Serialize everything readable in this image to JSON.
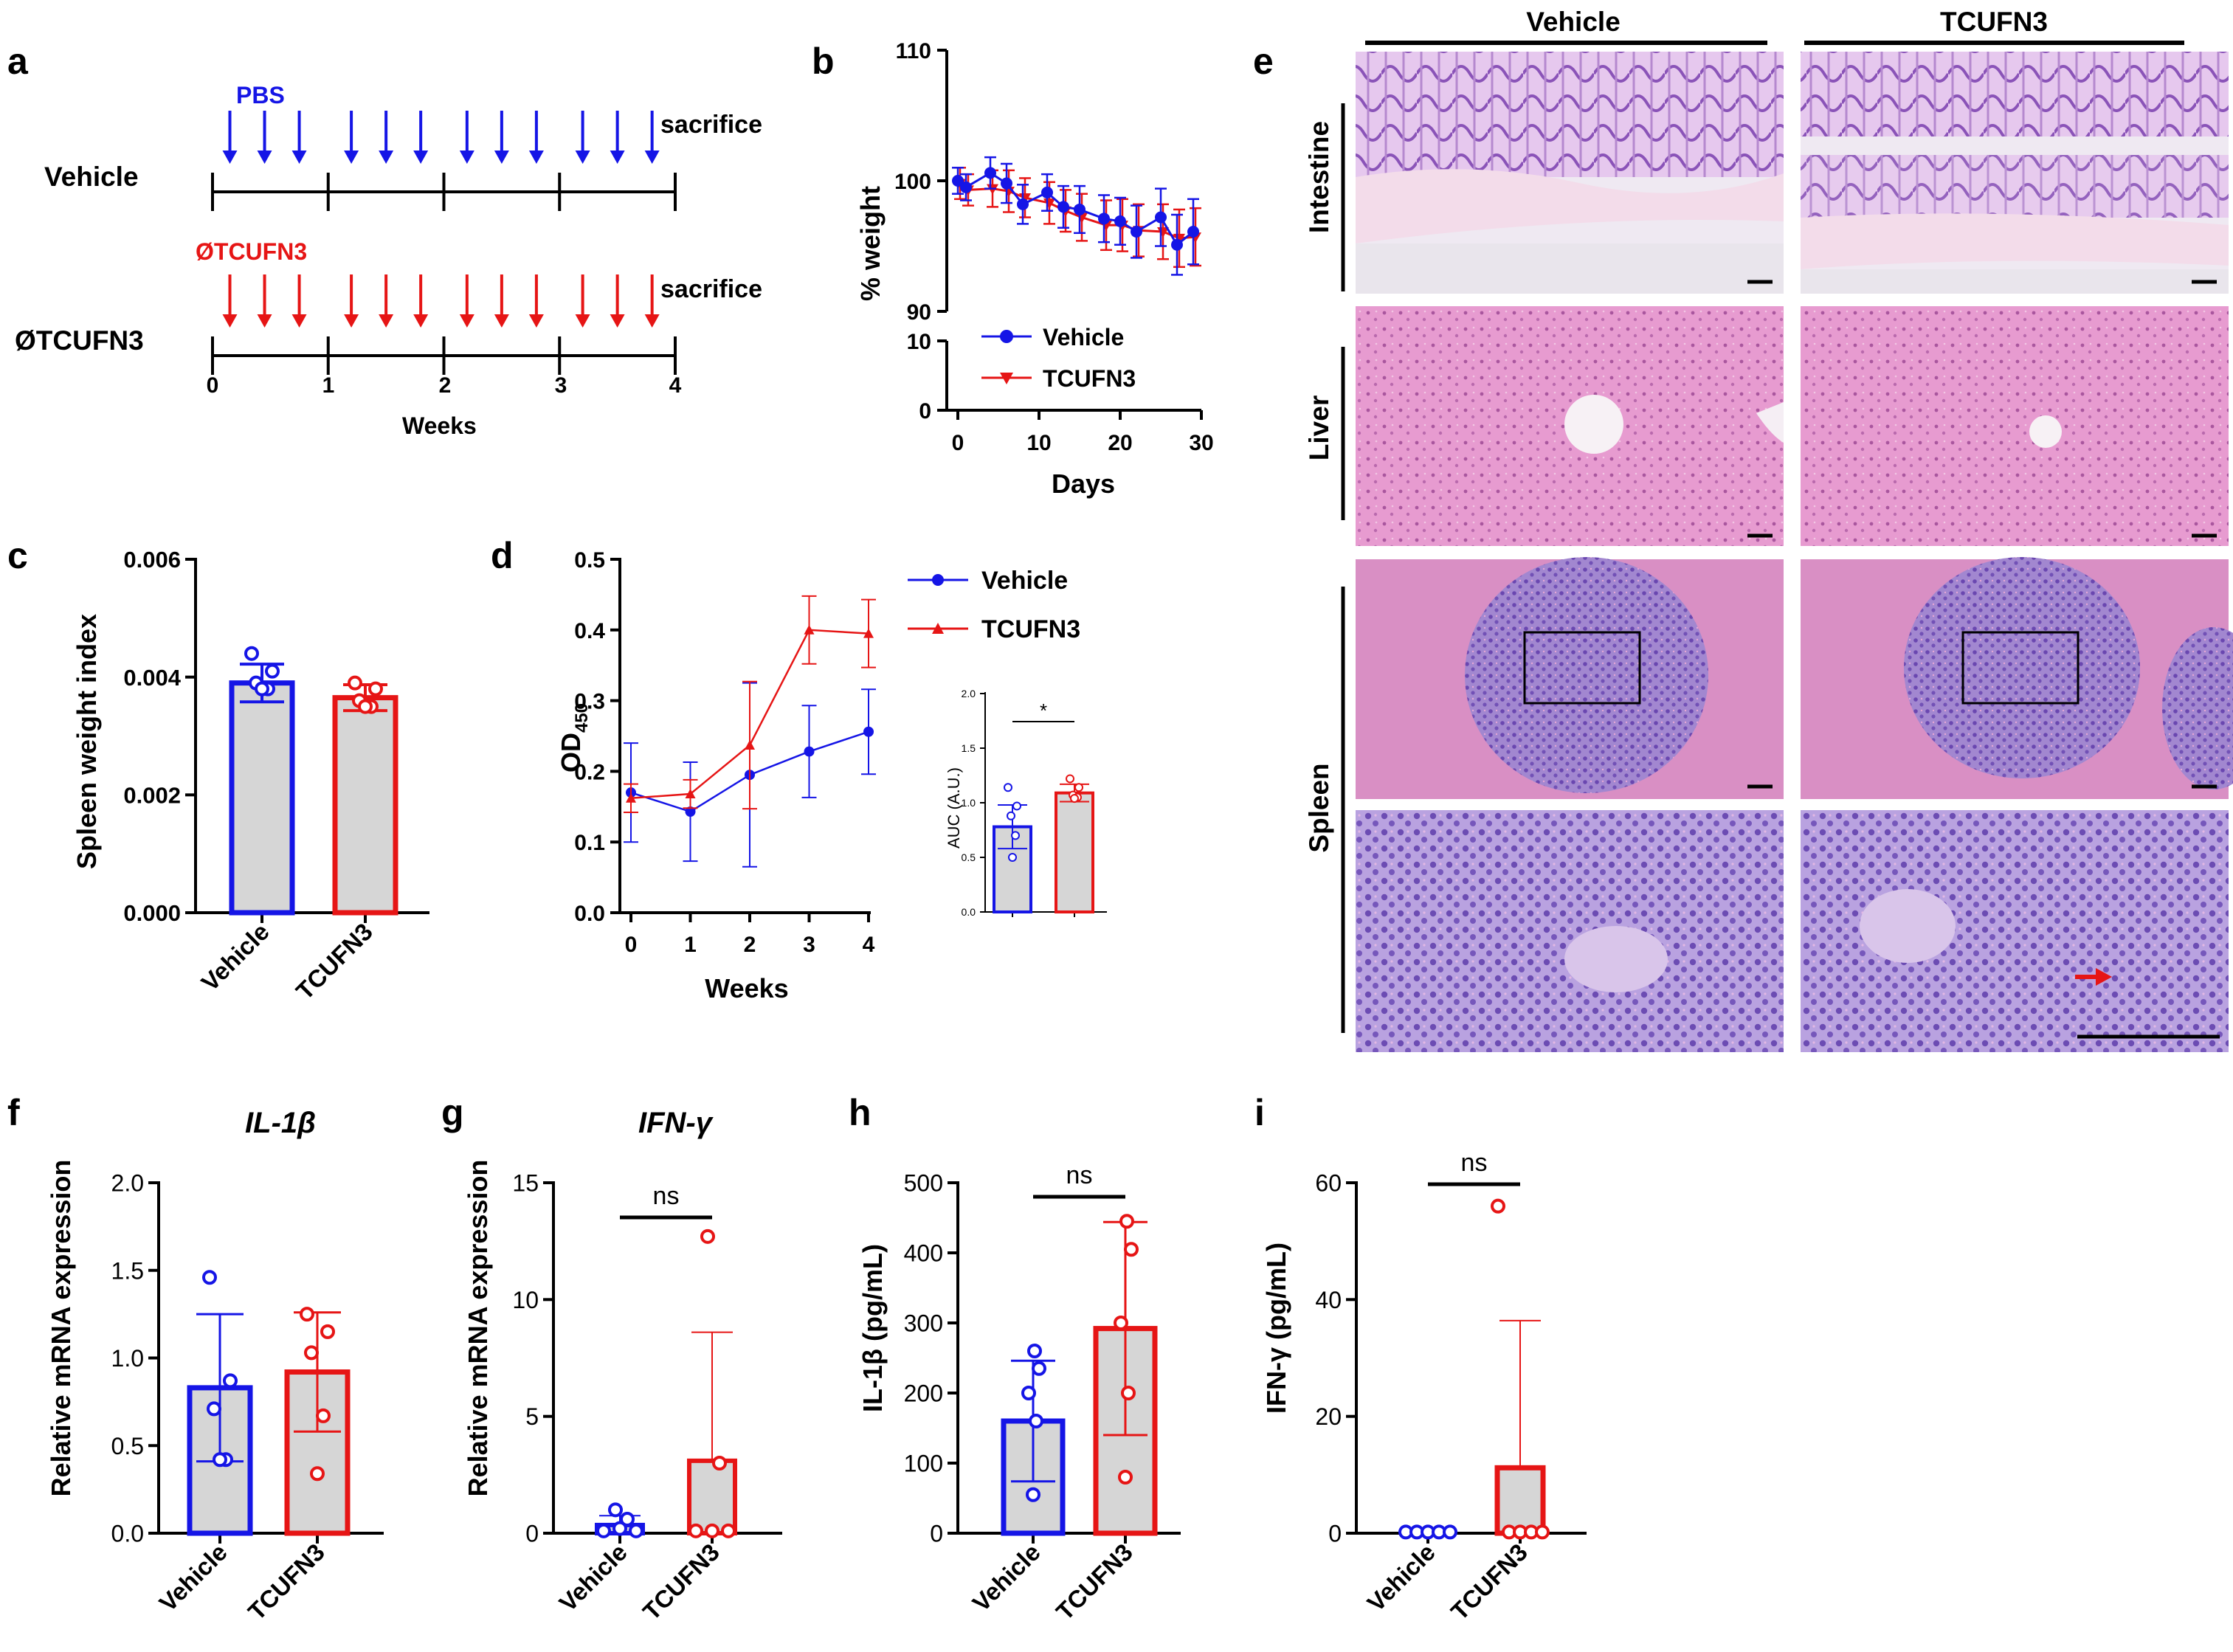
{
  "panels": {
    "a": {
      "label": "a",
      "groups": [
        {
          "name": "Vehicle",
          "treatment": "PBS",
          "color": "#1515e6"
        },
        {
          "name": "ØTCUFN3",
          "treatment": "ØTCUFN3",
          "color": "#e61515"
        }
      ],
      "end_label": "sacrifice",
      "ticks": [
        "0",
        "1",
        "2",
        "3",
        "4"
      ],
      "xlabel": "Weeks",
      "injection_weeks": [
        0.15,
        0.45,
        0.75,
        1.2,
        1.5,
        1.8,
        2.2,
        2.5,
        2.8,
        3.2,
        3.5,
        3.8
      ]
    },
    "b": {
      "label": "b"
    },
    "c": {
      "label": "c"
    },
    "d": {
      "label": "d"
    },
    "e": {
      "label": "e",
      "columns": [
        "Vehicle",
        "TCUFN3"
      ],
      "rows": [
        "Intestine",
        "Liver",
        "Spleen"
      ]
    },
    "f": {
      "label": "f"
    },
    "g": {
      "label": "g"
    },
    "h": {
      "label": "h"
    },
    "i": {
      "label": "i"
    }
  },
  "colors": {
    "vehicle": "#1515e6",
    "tcufn3": "#e61515",
    "bar_fill": "#d6d6d6"
  },
  "chart_data": [
    {
      "id": "b",
      "type": "line",
      "ylabel": "% weight",
      "xlabel": "Days",
      "x_ticks": [
        "0",
        "10",
        "20",
        "30"
      ],
      "y_ticks_upper": [
        "90",
        "100",
        "110"
      ],
      "y_ticks_lower": [
        "0",
        "10"
      ],
      "ylim_upper": [
        90,
        110
      ],
      "ylim_lower": [
        0,
        10
      ],
      "xlim": [
        0,
        30
      ],
      "series": [
        {
          "name": "Vehicle",
          "marker": "circle",
          "x": [
            0,
            1,
            4,
            6,
            8,
            11,
            13,
            15,
            18,
            20,
            22,
            25,
            27,
            29
          ],
          "y": [
            100,
            99.5,
            100.6,
            99.8,
            98.2,
            99.1,
            98,
            97.8,
            97.1,
            96.9,
            96.1,
            97.2,
            95.1,
            96.1
          ],
          "err": [
            1,
            1,
            1.2,
            1.5,
            1.5,
            1.4,
            1.6,
            1.8,
            1.8,
            1.8,
            2,
            2.2,
            2.3,
            2.5
          ]
        },
        {
          "name": "TCUFN3",
          "marker": "triangle-down",
          "x": [
            0,
            1,
            4,
            6,
            8,
            11,
            13,
            15,
            18,
            20,
            22,
            25,
            27,
            29
          ],
          "y": [
            99.8,
            99.3,
            99.4,
            99.2,
            98.7,
            98.3,
            97.7,
            97.2,
            96.6,
            96.6,
            96.2,
            96.1,
            95.6,
            95.7
          ],
          "err": [
            1.2,
            1.2,
            1.4,
            1.6,
            1.5,
            1.6,
            1.6,
            1.8,
            1.9,
            2,
            2,
            2.1,
            2.2,
            2.2
          ]
        }
      ]
    },
    {
      "id": "c",
      "type": "bar",
      "ylabel": "Spleen weight index",
      "categories": [
        "Vehicle",
        "TCUFN3"
      ],
      "y_ticks": [
        "0.000",
        "0.002",
        "0.004",
        "0.006"
      ],
      "ylim": [
        0,
        0.006
      ],
      "values": [
        0.0039,
        0.00365
      ],
      "errors": [
        0.00032,
        0.00022
      ],
      "points": [
        [
          0.0044,
          0.0041,
          0.0039,
          0.0038,
          0.0038
        ],
        [
          0.0039,
          0.0038,
          0.0036,
          0.0035,
          0.0035
        ]
      ]
    },
    {
      "id": "d",
      "type": "line",
      "ylabel": "OD",
      "ylabel_sub": "450",
      "xlabel": "Weeks",
      "x_ticks": [
        "0",
        "1",
        "2",
        "3",
        "4"
      ],
      "y_ticks": [
        "0.0",
        "0.1",
        "0.2",
        "0.3",
        "0.4",
        "0.5"
      ],
      "ylim": [
        0,
        0.5
      ],
      "xlim": [
        0,
        4
      ],
      "series": [
        {
          "name": "Vehicle",
          "marker": "circle",
          "x": [
            0,
            1,
            2,
            3,
            4
          ],
          "y": [
            0.17,
            0.143,
            0.195,
            0.228,
            0.256
          ],
          "err": [
            0.07,
            0.07,
            0.13,
            0.065,
            0.06
          ]
        },
        {
          "name": "TCUFN3",
          "marker": "triangle",
          "x": [
            0,
            1,
            2,
            3,
            4
          ],
          "y": [
            0.162,
            0.168,
            0.237,
            0.4,
            0.395
          ],
          "err": [
            0.02,
            0.02,
            0.09,
            0.048,
            0.048
          ]
        }
      ]
    },
    {
      "id": "d-inset",
      "type": "bar",
      "ylabel": "AUC (A.U.)",
      "y_ticks": [
        "0.0",
        "0.5",
        "1.0",
        "1.5",
        "2.0"
      ],
      "ylim": [
        0,
        2.0
      ],
      "values": [
        0.78,
        1.09
      ],
      "errors": [
        0.2,
        0.08
      ],
      "points": [
        [
          1.14,
          0.97,
          0.88,
          0.7,
          0.5
        ],
        [
          1.22,
          1.14,
          1.07,
          1.05,
          1.04
        ]
      ],
      "significance": "*"
    },
    {
      "id": "f",
      "type": "bar",
      "title": "IL-1β",
      "ylabel": "Relative mRNA expression",
      "categories": [
        "Vehicle",
        "TCUFN3"
      ],
      "y_ticks": [
        "0.0",
        "0.5",
        "1.0",
        "1.5",
        "2.0"
      ],
      "ylim": [
        0,
        2.0
      ],
      "values": [
        0.83,
        0.92
      ],
      "errors": [
        0.42,
        0.34
      ],
      "points": [
        [
          1.46,
          0.87,
          0.71,
          0.42,
          0.42
        ],
        [
          1.25,
          1.15,
          1.03,
          0.67,
          0.34
        ]
      ]
    },
    {
      "id": "g",
      "type": "bar",
      "title": "IFN-γ",
      "ylabel": "Relative mRNA expression",
      "categories": [
        "Vehicle",
        "TCUFN3"
      ],
      "y_ticks": [
        "0",
        "5",
        "10",
        "15"
      ],
      "ylim": [
        0,
        15
      ],
      "values": [
        0.35,
        3.1
      ],
      "errors": [
        0.4,
        5.5
      ],
      "points": [
        [
          1.0,
          0.6,
          0.2,
          0.1,
          0.1
        ],
        [
          12.7,
          3.0,
          0.1,
          0.1,
          0.1
        ]
      ],
      "significance": "ns"
    },
    {
      "id": "h",
      "type": "bar",
      "ylabel": "IL-1β (pg/mL)",
      "categories": [
        "Vehicle",
        "TCUFN3"
      ],
      "y_ticks": [
        "0",
        "100",
        "200",
        "300",
        "400",
        "500"
      ],
      "ylim": [
        0,
        500
      ],
      "values": [
        160,
        292
      ],
      "errors": [
        86,
        152
      ],
      "points": [
        [
          260,
          235,
          200,
          160,
          55
        ],
        [
          445,
          405,
          300,
          200,
          80
        ]
      ],
      "significance": "ns"
    },
    {
      "id": "i",
      "type": "bar",
      "ylabel": "IFN-γ (pg/mL)",
      "categories": [
        "Vehicle",
        "TCUFN3"
      ],
      "y_ticks": [
        "0",
        "20",
        "40",
        "60"
      ],
      "ylim": [
        0,
        60
      ],
      "values": [
        0.2,
        11.2
      ],
      "errors": [
        0.1,
        25.2
      ],
      "points": [
        [
          0.2,
          0.2,
          0.2,
          0.2,
          0.2
        ],
        [
          56,
          0.2,
          0.2,
          0.2,
          0.2
        ]
      ],
      "significance": "ns"
    }
  ]
}
